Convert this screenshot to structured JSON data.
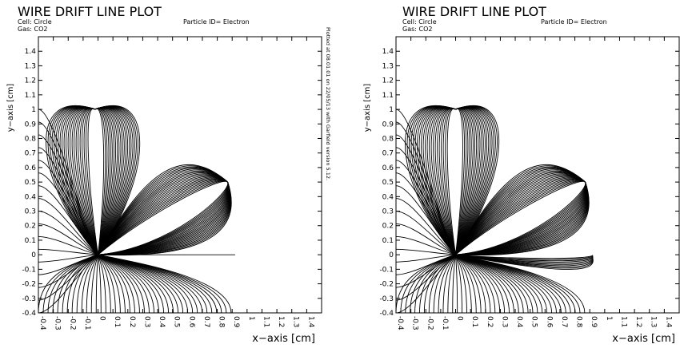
{
  "chart_data": [
    {
      "type": "line",
      "title": "WIRE DRIFT LINE PLOT",
      "cell": "Cell: Circle",
      "gas": "Gas: CO2",
      "particle": "Particle ID= Electron",
      "xlabel": "x−axis [cm]",
      "ylabel": "y−axis [cm]",
      "xlim": [
        -0.4,
        1.5
      ],
      "ylim": [
        -0.4,
        1.5
      ],
      "xticks": [
        "-0.4",
        "-0.3",
        "-0.2",
        "-0.1",
        "0",
        "0.1",
        "0.2",
        "0.3",
        "0.4",
        "0.5",
        "0.6",
        "0.7",
        "0.8",
        "0.9",
        "1",
        "1.1",
        "1.2",
        "1.3",
        "1.4"
      ],
      "yticks": [
        "-0.4",
        "-0.3",
        "-0.2",
        "-0.1",
        "0",
        "0.1",
        "0.2",
        "0.3",
        "0.4",
        "0.5",
        "0.6",
        "0.7",
        "0.8",
        "0.9",
        "1",
        "1.1",
        "1.2",
        "1.3",
        "1.4"
      ],
      "grid": false,
      "wires": [
        {
          "x": -0.02,
          "y": 1.0
        },
        {
          "x": 0.87,
          "y": 0.5
        },
        {
          "x": 0.0,
          "y": 0.0
        }
      ]
    },
    {
      "type": "line",
      "title": "WIRE DRIFT LINE PLOT",
      "cell": "Cell: Circle",
      "gas": "Gas: CO2",
      "particle": "Particle ID= Electron",
      "xlabel": "x−axis [cm]",
      "ylabel": "y−axis [cm]",
      "xlim": [
        -0.4,
        1.5
      ],
      "ylim": [
        -0.4,
        1.5
      ],
      "xticks": [
        "-0.4",
        "-0.3",
        "-0.2",
        "-0.1",
        "0",
        "0.1",
        "0.2",
        "0.3",
        "0.4",
        "0.5",
        "0.6",
        "0.7",
        "0.8",
        "0.9",
        "1",
        "1.1",
        "1.2",
        "1.3",
        "1.4"
      ],
      "yticks": [
        "-0.4",
        "-0.3",
        "-0.2",
        "-0.1",
        "0",
        "0.1",
        "0.2",
        "0.3",
        "0.4",
        "0.5",
        "0.6",
        "0.7",
        "0.8",
        "0.9",
        "1",
        "1.1",
        "1.2",
        "1.3",
        "1.4"
      ],
      "grid": false,
      "wires": [
        {
          "x": 0.0,
          "y": 1.0
        },
        {
          "x": 0.87,
          "y": 0.5
        },
        {
          "x": 0.0,
          "y": 0.0
        }
      ]
    }
  ],
  "stamp": "Plotted at 08.01.01 on 22/05/13 with Garfield version 5.12."
}
